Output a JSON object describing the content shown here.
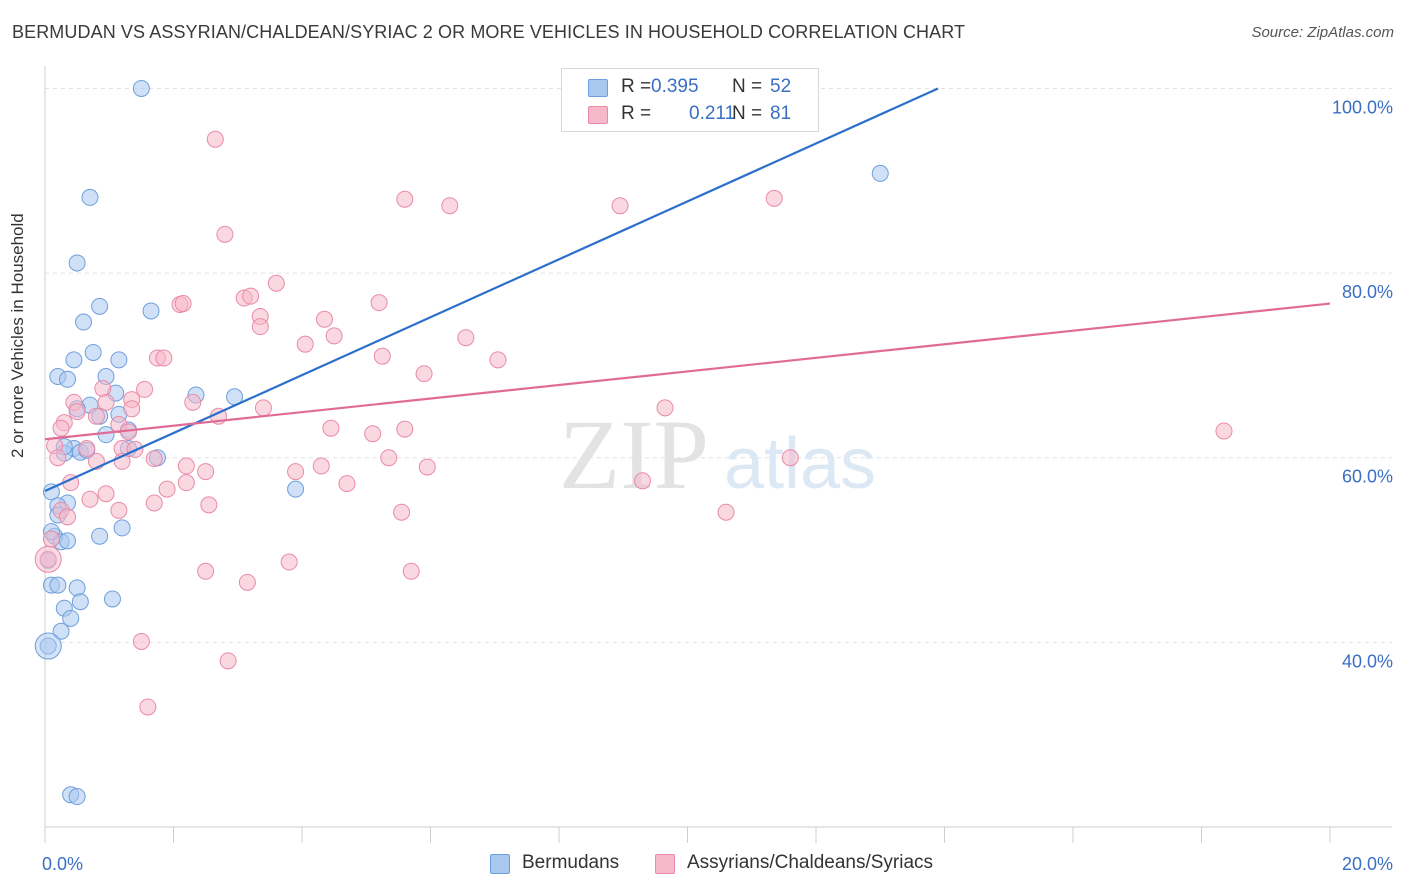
{
  "title": "BERMUDAN VS ASSYRIAN/CHALDEAN/SYRIAC 2 OR MORE VEHICLES IN HOUSEHOLD CORRELATION CHART",
  "source": "Source: ZipAtlas.com",
  "watermark": {
    "zip": "ZIP",
    "atlas": "atlas"
  },
  "legend_top": [
    {
      "r_label": "R =",
      "r_value": "0.395",
      "n_label": "N =",
      "n_value": "52",
      "color": "#a9c8f0"
    },
    {
      "r_label": "R =",
      "r_value": "0.211",
      "n_label": "N =",
      "n_value": "81",
      "color": "#f6b8cb"
    }
  ],
  "legend_bottom": [
    {
      "label": "Bermudans",
      "color": "#a9c8f0"
    },
    {
      "label": "Assyrians/Chaldeans/Syriacs",
      "color": "#f6b8cb"
    }
  ],
  "chart_data": {
    "type": "scatter",
    "title": "BERMUDAN VS ASSYRIAN/CHALDEAN/SYRIAC 2 OR MORE VEHICLES IN HOUSEHOLD CORRELATION CHART",
    "xlabel": "",
    "ylabel": "2 or more Vehicles in Household",
    "xlim": [
      0,
      20
    ],
    "ylim": [
      20,
      102
    ],
    "x_tick_labels": [
      {
        "value": 0,
        "label": "0.0%"
      },
      {
        "value": 20,
        "label": "20.0%"
      }
    ],
    "y_tick_labels": [
      {
        "value": 100,
        "label": "100.0%"
      },
      {
        "value": 80,
        "label": "80.0%"
      },
      {
        "value": 60,
        "label": "60.0%"
      },
      {
        "value": 40,
        "label": "40.0%"
      }
    ],
    "series": [
      {
        "name": "Bermudans",
        "color": "#a9c8f0",
        "stroke": "#6d9fdc",
        "line_color": "#2a6fcc",
        "trend": {
          "x": [
            0,
            13.9
          ],
          "y": [
            56.4,
            100.0
          ]
        },
        "points": [
          {
            "x": 1.5,
            "y": 100.0
          },
          {
            "x": 0.7,
            "y": 88.2
          },
          {
            "x": 0.5,
            "y": 81.1
          },
          {
            "x": 0.85,
            "y": 76.4
          },
          {
            "x": 1.65,
            "y": 75.9
          },
          {
            "x": 0.6,
            "y": 74.7
          },
          {
            "x": 0.75,
            "y": 71.4
          },
          {
            "x": 0.45,
            "y": 70.6
          },
          {
            "x": 1.15,
            "y": 70.6
          },
          {
            "x": 0.2,
            "y": 68.8
          },
          {
            "x": 0.35,
            "y": 68.5
          },
          {
            "x": 0.95,
            "y": 68.8
          },
          {
            "x": 1.1,
            "y": 67.0
          },
          {
            "x": 2.35,
            "y": 66.8
          },
          {
            "x": 2.95,
            "y": 66.6
          },
          {
            "x": 0.7,
            "y": 65.7
          },
          {
            "x": 0.5,
            "y": 65.3
          },
          {
            "x": 0.85,
            "y": 64.5
          },
          {
            "x": 1.15,
            "y": 64.7
          },
          {
            "x": 1.3,
            "y": 63.0
          },
          {
            "x": 0.95,
            "y": 62.5
          },
          {
            "x": 0.45,
            "y": 61.0
          },
          {
            "x": 0.55,
            "y": 60.6
          },
          {
            "x": 0.3,
            "y": 60.5
          },
          {
            "x": 1.3,
            "y": 61.0
          },
          {
            "x": 1.75,
            "y": 60.0
          },
          {
            "x": 3.9,
            "y": 56.6
          },
          {
            "x": 0.1,
            "y": 56.3
          },
          {
            "x": 0.35,
            "y": 55.1
          },
          {
            "x": 0.2,
            "y": 54.8
          },
          {
            "x": 0.2,
            "y": 53.8
          },
          {
            "x": 1.2,
            "y": 52.4
          },
          {
            "x": 0.15,
            "y": 51.5
          },
          {
            "x": 0.85,
            "y": 51.5
          },
          {
            "x": 0.25,
            "y": 50.9
          },
          {
            "x": 0.35,
            "y": 51.0
          },
          {
            "x": 0.05,
            "y": 48.9
          },
          {
            "x": 0.1,
            "y": 46.2
          },
          {
            "x": 0.2,
            "y": 46.2
          },
          {
            "x": 0.5,
            "y": 45.9
          },
          {
            "x": 0.55,
            "y": 44.4
          },
          {
            "x": 1.05,
            "y": 44.7
          },
          {
            "x": 0.3,
            "y": 43.7
          },
          {
            "x": 0.4,
            "y": 42.6
          },
          {
            "x": 0.25,
            "y": 41.2
          },
          {
            "x": 0.05,
            "y": 39.6
          },
          {
            "x": 13.0,
            "y": 90.8
          },
          {
            "x": 0.4,
            "y": 23.5
          },
          {
            "x": 0.5,
            "y": 23.3
          },
          {
            "x": 0.3,
            "y": 61.2
          },
          {
            "x": 0.65,
            "y": 60.8
          },
          {
            "x": 0.1,
            "y": 52.0
          }
        ]
      },
      {
        "name": "Assyrians/Chaldeans/Syriacs",
        "color": "#f6b8cb",
        "stroke": "#ea8aa7",
        "line_color": "#e06c96",
        "trend": {
          "x": [
            0,
            20
          ],
          "y": [
            62.0,
            76.7
          ]
        },
        "points": [
          {
            "x": 2.65,
            "y": 94.5
          },
          {
            "x": 5.6,
            "y": 88.0
          },
          {
            "x": 6.3,
            "y": 87.3
          },
          {
            "x": 8.95,
            "y": 87.3
          },
          {
            "x": 11.35,
            "y": 88.1
          },
          {
            "x": 2.8,
            "y": 84.2
          },
          {
            "x": 3.6,
            "y": 78.9
          },
          {
            "x": 3.1,
            "y": 77.3
          },
          {
            "x": 3.2,
            "y": 77.5
          },
          {
            "x": 5.2,
            "y": 76.8
          },
          {
            "x": 2.1,
            "y": 76.6
          },
          {
            "x": 2.15,
            "y": 76.7
          },
          {
            "x": 4.35,
            "y": 75.0
          },
          {
            "x": 3.35,
            "y": 75.3
          },
          {
            "x": 3.35,
            "y": 74.2
          },
          {
            "x": 4.5,
            "y": 73.2
          },
          {
            "x": 6.55,
            "y": 73.0
          },
          {
            "x": 4.05,
            "y": 72.3
          },
          {
            "x": 5.25,
            "y": 71.0
          },
          {
            "x": 1.75,
            "y": 70.8
          },
          {
            "x": 1.85,
            "y": 70.8
          },
          {
            "x": 7.05,
            "y": 70.6
          },
          {
            "x": 5.9,
            "y": 69.1
          },
          {
            "x": 0.9,
            "y": 67.5
          },
          {
            "x": 1.55,
            "y": 67.4
          },
          {
            "x": 1.35,
            "y": 66.3
          },
          {
            "x": 0.95,
            "y": 66.0
          },
          {
            "x": 2.3,
            "y": 66.0
          },
          {
            "x": 0.45,
            "y": 66.0
          },
          {
            "x": 1.35,
            "y": 65.3
          },
          {
            "x": 3.4,
            "y": 65.4
          },
          {
            "x": 9.65,
            "y": 65.4
          },
          {
            "x": 0.5,
            "y": 65.0
          },
          {
            "x": 0.8,
            "y": 64.5
          },
          {
            "x": 0.3,
            "y": 63.8
          },
          {
            "x": 2.7,
            "y": 64.5
          },
          {
            "x": 1.15,
            "y": 63.6
          },
          {
            "x": 0.25,
            "y": 63.2
          },
          {
            "x": 1.3,
            "y": 62.8
          },
          {
            "x": 4.45,
            "y": 63.2
          },
          {
            "x": 5.1,
            "y": 62.6
          },
          {
            "x": 5.6,
            "y": 63.1
          },
          {
            "x": 0.15,
            "y": 61.3
          },
          {
            "x": 0.65,
            "y": 61.0
          },
          {
            "x": 1.2,
            "y": 61.0
          },
          {
            "x": 0.2,
            "y": 60.0
          },
          {
            "x": 0.8,
            "y": 59.6
          },
          {
            "x": 1.2,
            "y": 59.6
          },
          {
            "x": 1.7,
            "y": 59.9
          },
          {
            "x": 5.35,
            "y": 60.0
          },
          {
            "x": 11.6,
            "y": 60.0
          },
          {
            "x": 2.2,
            "y": 59.1
          },
          {
            "x": 4.3,
            "y": 59.1
          },
          {
            "x": 5.95,
            "y": 59.0
          },
          {
            "x": 3.9,
            "y": 58.5
          },
          {
            "x": 2.5,
            "y": 58.5
          },
          {
            "x": 18.35,
            "y": 62.9
          },
          {
            "x": 0.4,
            "y": 57.3
          },
          {
            "x": 2.2,
            "y": 57.3
          },
          {
            "x": 4.7,
            "y": 57.2
          },
          {
            "x": 9.3,
            "y": 57.5
          },
          {
            "x": 0.95,
            "y": 56.1
          },
          {
            "x": 1.9,
            "y": 56.6
          },
          {
            "x": 0.7,
            "y": 55.5
          },
          {
            "x": 1.7,
            "y": 55.1
          },
          {
            "x": 2.55,
            "y": 54.9
          },
          {
            "x": 0.25,
            "y": 54.3
          },
          {
            "x": 1.15,
            "y": 54.3
          },
          {
            "x": 5.55,
            "y": 54.1
          },
          {
            "x": 10.6,
            "y": 54.1
          },
          {
            "x": 0.35,
            "y": 53.6
          },
          {
            "x": 0.1,
            "y": 51.2
          },
          {
            "x": 0.05,
            "y": 49.0
          },
          {
            "x": 3.8,
            "y": 48.7
          },
          {
            "x": 2.5,
            "y": 47.7
          },
          {
            "x": 5.7,
            "y": 47.7
          },
          {
            "x": 3.15,
            "y": 46.5
          },
          {
            "x": 1.5,
            "y": 40.1
          },
          {
            "x": 2.85,
            "y": 38.0
          },
          {
            "x": 1.6,
            "y": 33.0
          },
          {
            "x": 1.4,
            "y": 60.9
          }
        ]
      }
    ]
  }
}
